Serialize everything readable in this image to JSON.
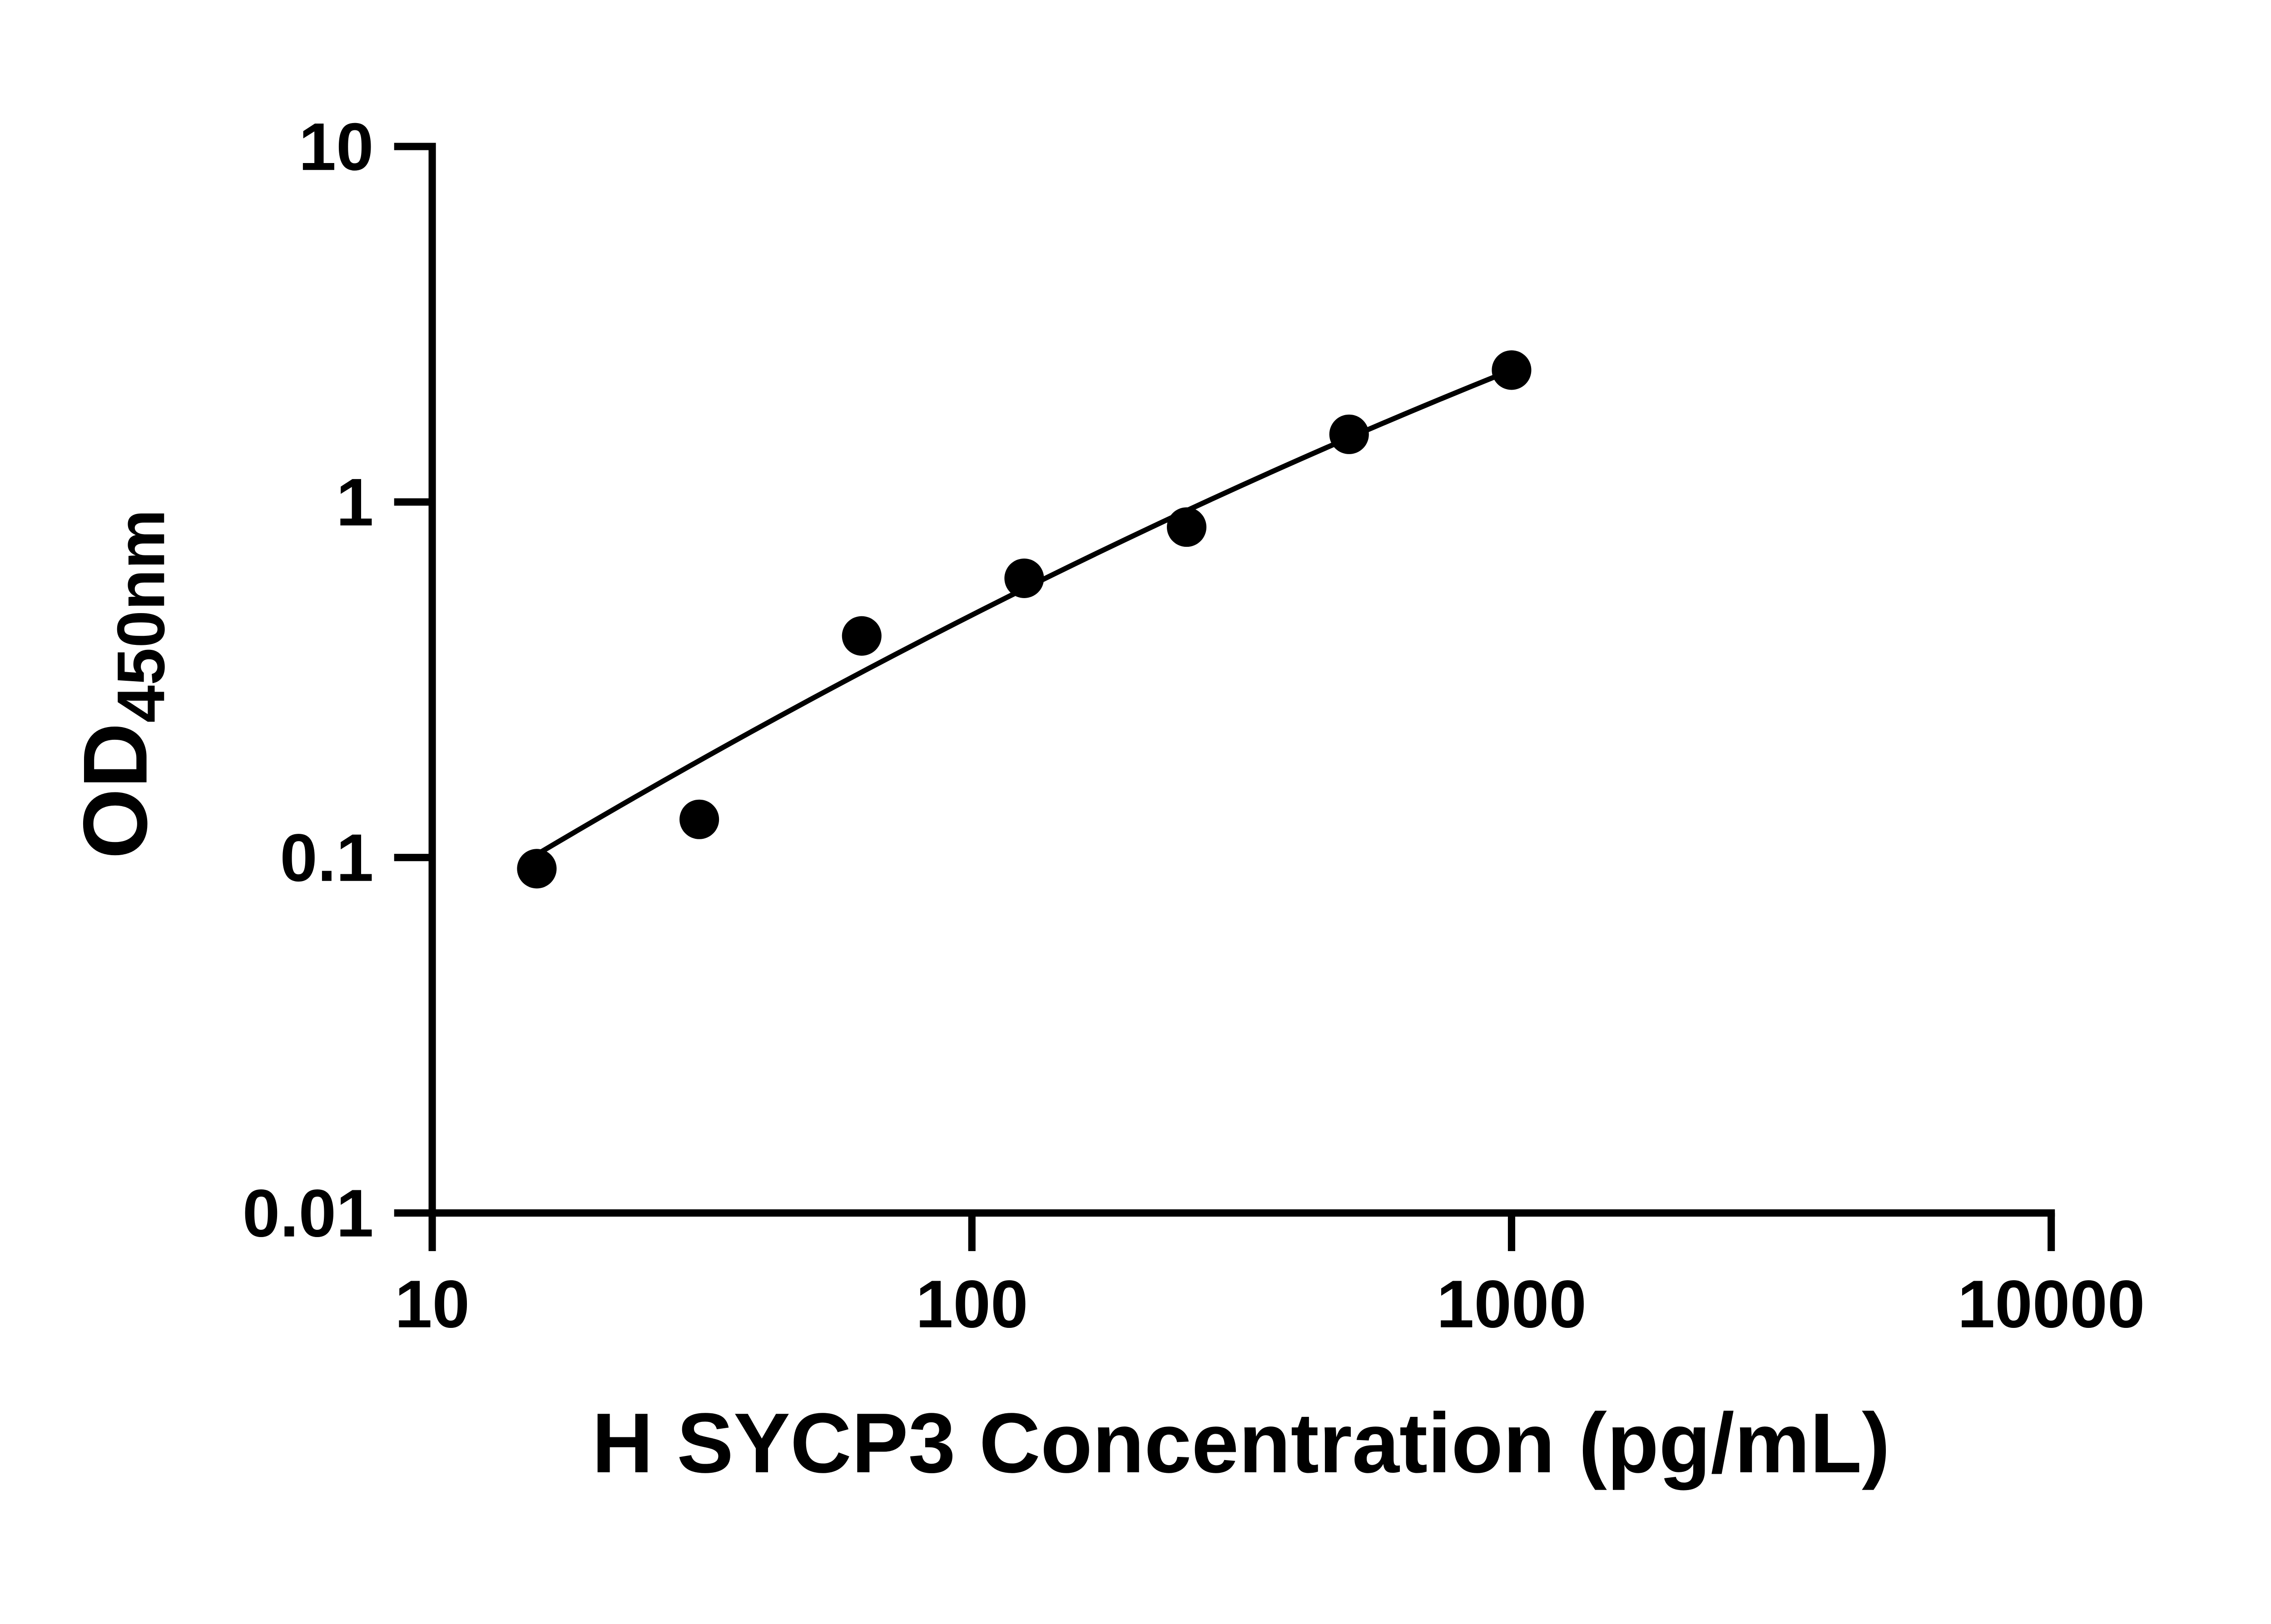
{
  "chart_data": {
    "type": "scatter",
    "title": "",
    "xlabel": "H SYCP3 Concentration (pg/mL)",
    "ylabel": "OD450nm",
    "ylabel_main": "OD",
    "ylabel_sub": "450nm",
    "x_scale": "log",
    "y_scale": "log",
    "xlim": [
      10,
      10000
    ],
    "ylim": [
      0.01,
      10
    ],
    "grid": false,
    "legend": "none",
    "x_ticks": [
      {
        "value": 10,
        "label": "10"
      },
      {
        "value": 100,
        "label": "100"
      },
      {
        "value": 1000,
        "label": "1000"
      },
      {
        "value": 10000,
        "label": "10000"
      }
    ],
    "y_ticks": [
      {
        "value": 0.01,
        "label": "0.01"
      },
      {
        "value": 0.1,
        "label": "0.1"
      },
      {
        "value": 1,
        "label": "1"
      },
      {
        "value": 10,
        "label": "10"
      }
    ],
    "series": [
      {
        "name": "standard-curve-points",
        "marker": "filled-circle",
        "points": [
          {
            "x": 15.625,
            "y": 0.093
          },
          {
            "x": 31.25,
            "y": 0.128
          },
          {
            "x": 62.5,
            "y": 0.42
          },
          {
            "x": 125,
            "y": 0.61
          },
          {
            "x": 250,
            "y": 0.85
          },
          {
            "x": 500,
            "y": 1.55
          },
          {
            "x": 1000,
            "y": 2.35
          }
        ]
      }
    ],
    "trendline": {
      "type": "smooth-fit-log-log",
      "anchors": [
        {
          "x": 15.625,
          "y": 0.102
        },
        {
          "x": 125,
          "y": 0.57
        },
        {
          "x": 1000,
          "y": 2.35
        }
      ]
    },
    "colors": {
      "axis": "#000000",
      "marker": "#000000",
      "line": "#000000",
      "background": "#ffffff"
    }
  }
}
